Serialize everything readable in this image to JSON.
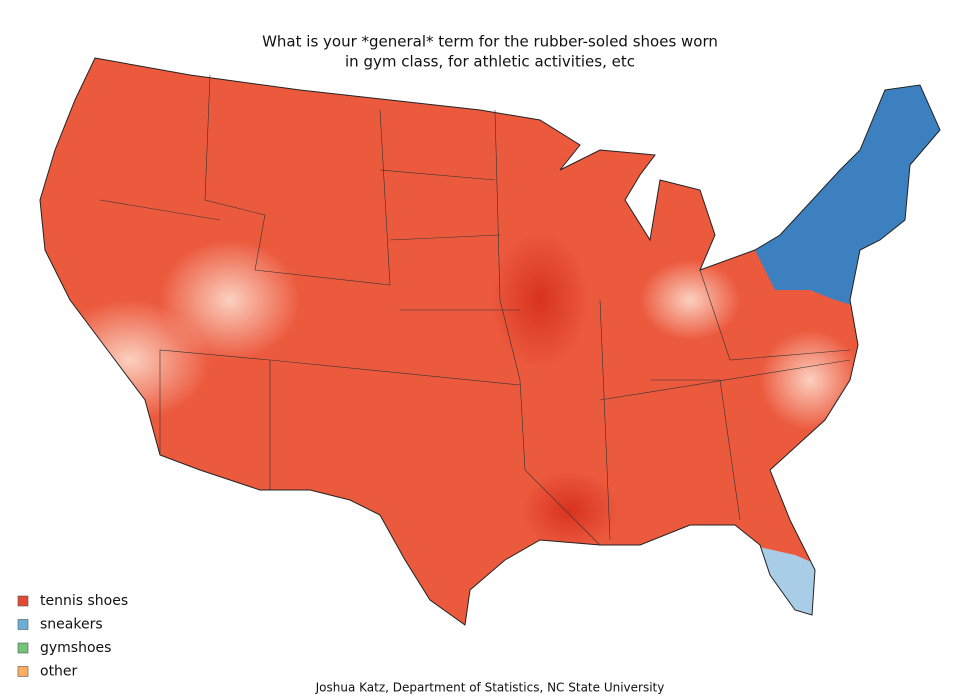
{
  "title": [
    "What is your *general* term for the rubber-soled shoes worn",
    "in gym class, for athletic activities, etc"
  ],
  "legend": [
    {
      "label": "tennis shoes",
      "color": "#e34a33"
    },
    {
      "label": "sneakers",
      "color": "#6baed6"
    },
    {
      "label": "gymshoes",
      "color": "#74c476"
    },
    {
      "label": "other",
      "color": "#fdae61"
    }
  ],
  "credit": "Joshua Katz, Department of Statistics, NC State University"
}
